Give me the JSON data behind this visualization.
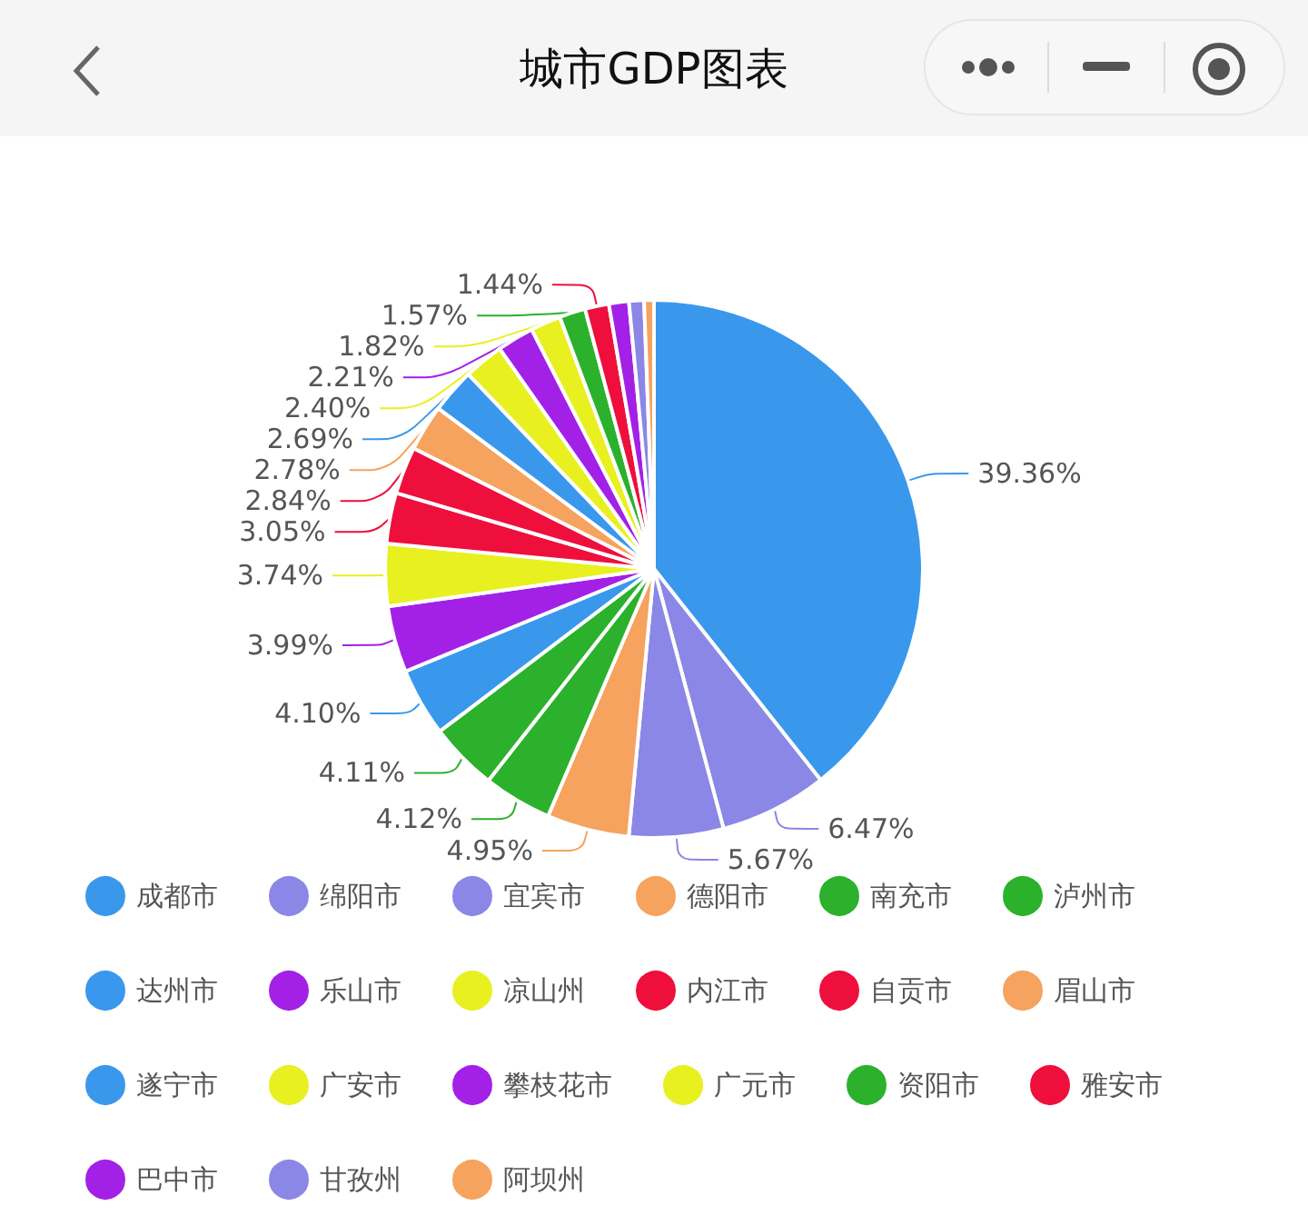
{
  "chart_data": {
    "type": "pie",
    "title": "城市GDP图表",
    "categories": [
      "成都市",
      "绵阳市",
      "宜宾市",
      "德阳市",
      "南充市",
      "泸州市",
      "达州市",
      "乐山市",
      "凉山州",
      "内江市",
      "自贡市",
      "眉山市",
      "遂宁市",
      "广安市",
      "攀枝花市",
      "广元市",
      "资阳市",
      "雅安市",
      "巴中市",
      "甘孜州",
      "阿坝州"
    ],
    "values": [
      39.36,
      6.47,
      5.67,
      4.95,
      4.12,
      4.11,
      4.1,
      3.99,
      3.74,
      3.05,
      2.84,
      2.78,
      2.69,
      2.4,
      2.21,
      1.82,
      1.57,
      1.44,
      1.2,
      0.9,
      0.59
    ],
    "value_labels": [
      "39.36%",
      "6.47%",
      "5.67%",
      "4.95%",
      "4.12%",
      "4.11%",
      "4.10%",
      "3.99%",
      "3.74%",
      "3.05%",
      "2.84%",
      "2.78%",
      "2.69%",
      "2.40%",
      "2.21%",
      "1.82%",
      "1.57%",
      "1.44%",
      null,
      null,
      null
    ],
    "colors": [
      "#3a98ec",
      "#8a87e6",
      "#8a87e6",
      "#f5a35f",
      "#2bb12b",
      "#2bb12b",
      "#3a98ec",
      "#a321e6",
      "#e8f020",
      "#ef0f3c",
      "#ef0f3c",
      "#f5a35f",
      "#3a98ec",
      "#e8f020",
      "#a321e6",
      "#e8f020",
      "#2bb12b",
      "#ef0f3c",
      "#a321e6",
      "#8a87e6",
      "#f5a35f"
    ],
    "legend": "bottom"
  }
}
